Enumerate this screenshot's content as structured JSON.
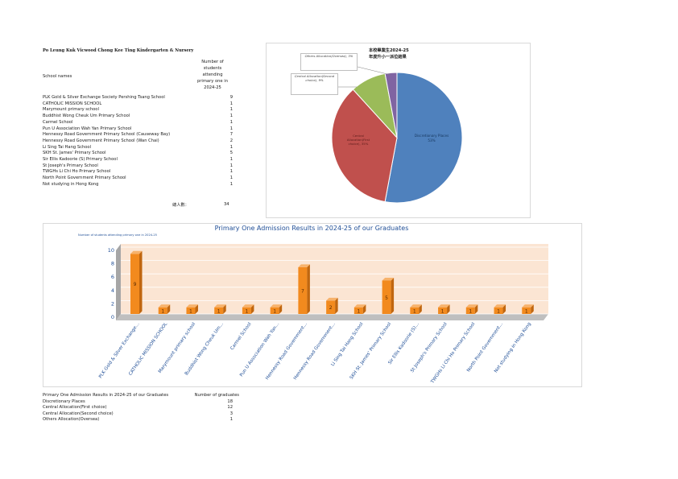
{
  "school_title": "Po Leung Kuk Vicwood Chong Kee Ting Kindergarten & Nursery",
  "table": {
    "col_names": "School names",
    "col_count": "Number of students attending primary one in 2024-25",
    "rows": [
      {
        "name": "PLK Gold & Silver Exchange Society Pershing Tsang School",
        "count": "9"
      },
      {
        "name": "CATHOLIC MISSION SCHOOL",
        "count": "1"
      },
      {
        "name": "Marymount primary school",
        "count": "1"
      },
      {
        "name": "Buddhist Wong Cheuk Um Primary School",
        "count": "1"
      },
      {
        "name": "Carmel School",
        "count": "1"
      },
      {
        "name": "Pun U Association Wah Yan Primary School",
        "count": "1"
      },
      {
        "name": "Hennessy Road Government Primary School (Causeway Bay)",
        "count": "7"
      },
      {
        "name": "Hennessy Road Government Primary School (Wan Chai)",
        "count": "2"
      },
      {
        "name": "Li Sing Tai Hang School",
        "count": "1"
      },
      {
        "name": "SKH St. James' Primary School",
        "count": "5"
      },
      {
        "name": "Sir Ellis Kadoorie (S) Primary School",
        "count": "1"
      },
      {
        "name": "St Joseph's Primary School",
        "count": "1"
      },
      {
        "name": "TWGHs Li Chi Ho Primary School",
        "count": "1"
      },
      {
        "name": "North Point Government Primary School",
        "count": "1"
      },
      {
        "name": "Not studying in Hong Kong",
        "count": "1"
      }
    ],
    "total_label": "總人數：",
    "total_value": "34"
  },
  "pie": {
    "title_line1": "本校畢業生2024-25",
    "title_line2": "年度升小一派位結果",
    "callout_others": "Others Allocation(Oversea), 3%",
    "callout_second": "Central Allocation(Second choice), 9%",
    "label_first": "Central Allocation(First choice), 35%",
    "label_disc": "Discretionary Places, 53%"
  },
  "bar": {
    "title": "Primary One Admission Results in 2024-25 of our Graduates",
    "series_label": "Number of students attending primary one in 2024-25"
  },
  "summary": {
    "header_left": "Primary One Admission Results in 2024-25 of our Graduates",
    "header_right": "Number of graduates",
    "rows": [
      {
        "name": "Discretionary Places",
        "count": "18"
      },
      {
        "name": "Central Allocation(First choice)",
        "count": "12"
      },
      {
        "name": "Central Allocation(Second choice)",
        "count": "3"
      },
      {
        "name": "Others Allocation(Oversea)",
        "count": "1"
      }
    ]
  },
  "colors": {
    "pie_blue": "#4f81bd",
    "pie_red": "#c0504d",
    "pie_green": "#9bbb59",
    "pie_purple": "#8064a2",
    "bar_orange": "#f28a1e",
    "bar_bg": "#fbe5d3",
    "title_blue": "#1f4e96"
  },
  "chart_data": [
    {
      "type": "pie",
      "title": "本校畢業生2024-25 年度升小一派位結果",
      "categories": [
        "Discretionary Places",
        "Central Allocation(First choice)",
        "Central Allocation(Second choice)",
        "Others Allocation(Oversea)"
      ],
      "values": [
        18,
        12,
        3,
        1
      ],
      "percent_labels": [
        "53%",
        "35%",
        "9%",
        "3%"
      ]
    },
    {
      "type": "bar",
      "title": "Primary One Admission Results in 2024-25 of our Graduates",
      "series": [
        {
          "name": "Number of students attending primary one in 2024-25",
          "values": [
            9,
            1,
            1,
            1,
            1,
            1,
            7,
            2,
            1,
            5,
            1,
            1,
            1,
            1,
            1
          ]
        }
      ],
      "categories": [
        "PLK Gold & Silver Exchange…",
        "CATHOLIC MISSION SCHOOL",
        "Marymount primary school",
        "Buddhist Wong Cheuk Um…",
        "Carmel School",
        "Pun U Association Wah Yan…",
        "Hennessy Road Government…",
        "Hennessy Road Government…",
        "Li Sing Tai Hang School",
        "SKH St. James' Primary School",
        "Sir Ellis Kadoorie (S)…",
        "St Joseph's Primary School",
        "TWGHs Li Chi Ho Primary School",
        "North Point Government…",
        "Not studying in Hong Kong"
      ],
      "yticks": [
        "0",
        "2",
        "4",
        "6",
        "8",
        "10"
      ],
      "ylim": [
        0,
        10
      ]
    }
  ]
}
